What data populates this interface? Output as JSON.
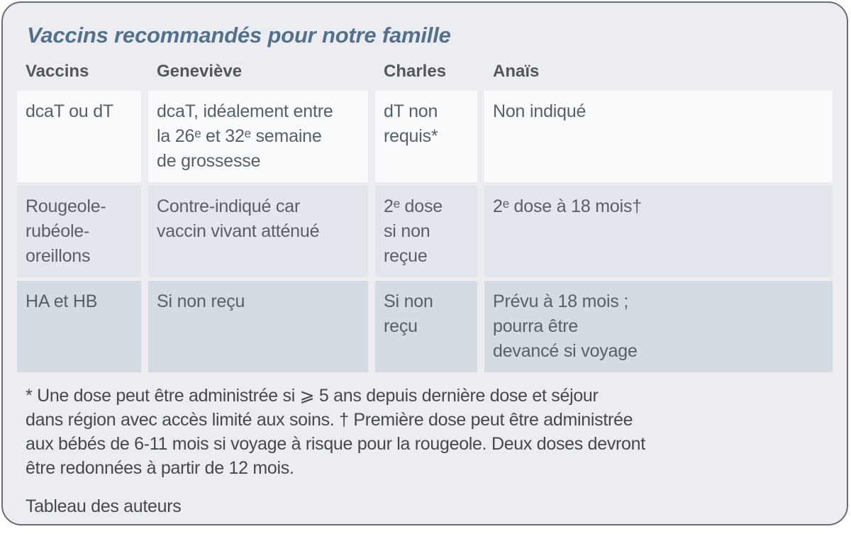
{
  "colors": {
    "card_background": "#ecedf1",
    "card_border": "#696d73",
    "title_text": "#53718e",
    "header_text": "#53565c",
    "cell_text": "#5a5f66",
    "row1_background": "#f9fafb",
    "row2_background": "#e3e7ed",
    "row3_background": "#d4dbe3"
  },
  "card": {
    "title": "Vaccins recommandés pour notre famille",
    "table": {
      "headers": [
        "Vaccins",
        "Geneviève",
        "Charles",
        "Anaïs"
      ],
      "rows": [
        [
          "dcaT ou dT",
          "dcaT, idéalement entre\nla 26ᵉ et 32ᵉ semaine\nde grossesse",
          "dT non\nrequis*",
          "Non indiqué"
        ],
        [
          "Rougeole-\nrubéole-\noreillons",
          "Contre-indiqué car\nvaccin vivant atténué",
          "2ᵉ dose\nsi non\nreçue",
          "2ᵉ dose à 18 mois†"
        ],
        [
          "HA et HB",
          "Si non reçu",
          "Si non\nreçu",
          "Prévu à 18 mois ;\npourra être\ndevancé si voyage"
        ]
      ]
    },
    "footnote": "* Une dose peut être administrée si ⩾ 5 ans depuis dernière dose et séjour\ndans région avec accès limité aux soins. † Première dose peut être administrée\naux bébés de 6-11 mois si voyage à risque pour la rougeole. Deux doses devront\nêtre redonnées à partir de 12 mois.",
    "credit": "Tableau des auteurs"
  }
}
